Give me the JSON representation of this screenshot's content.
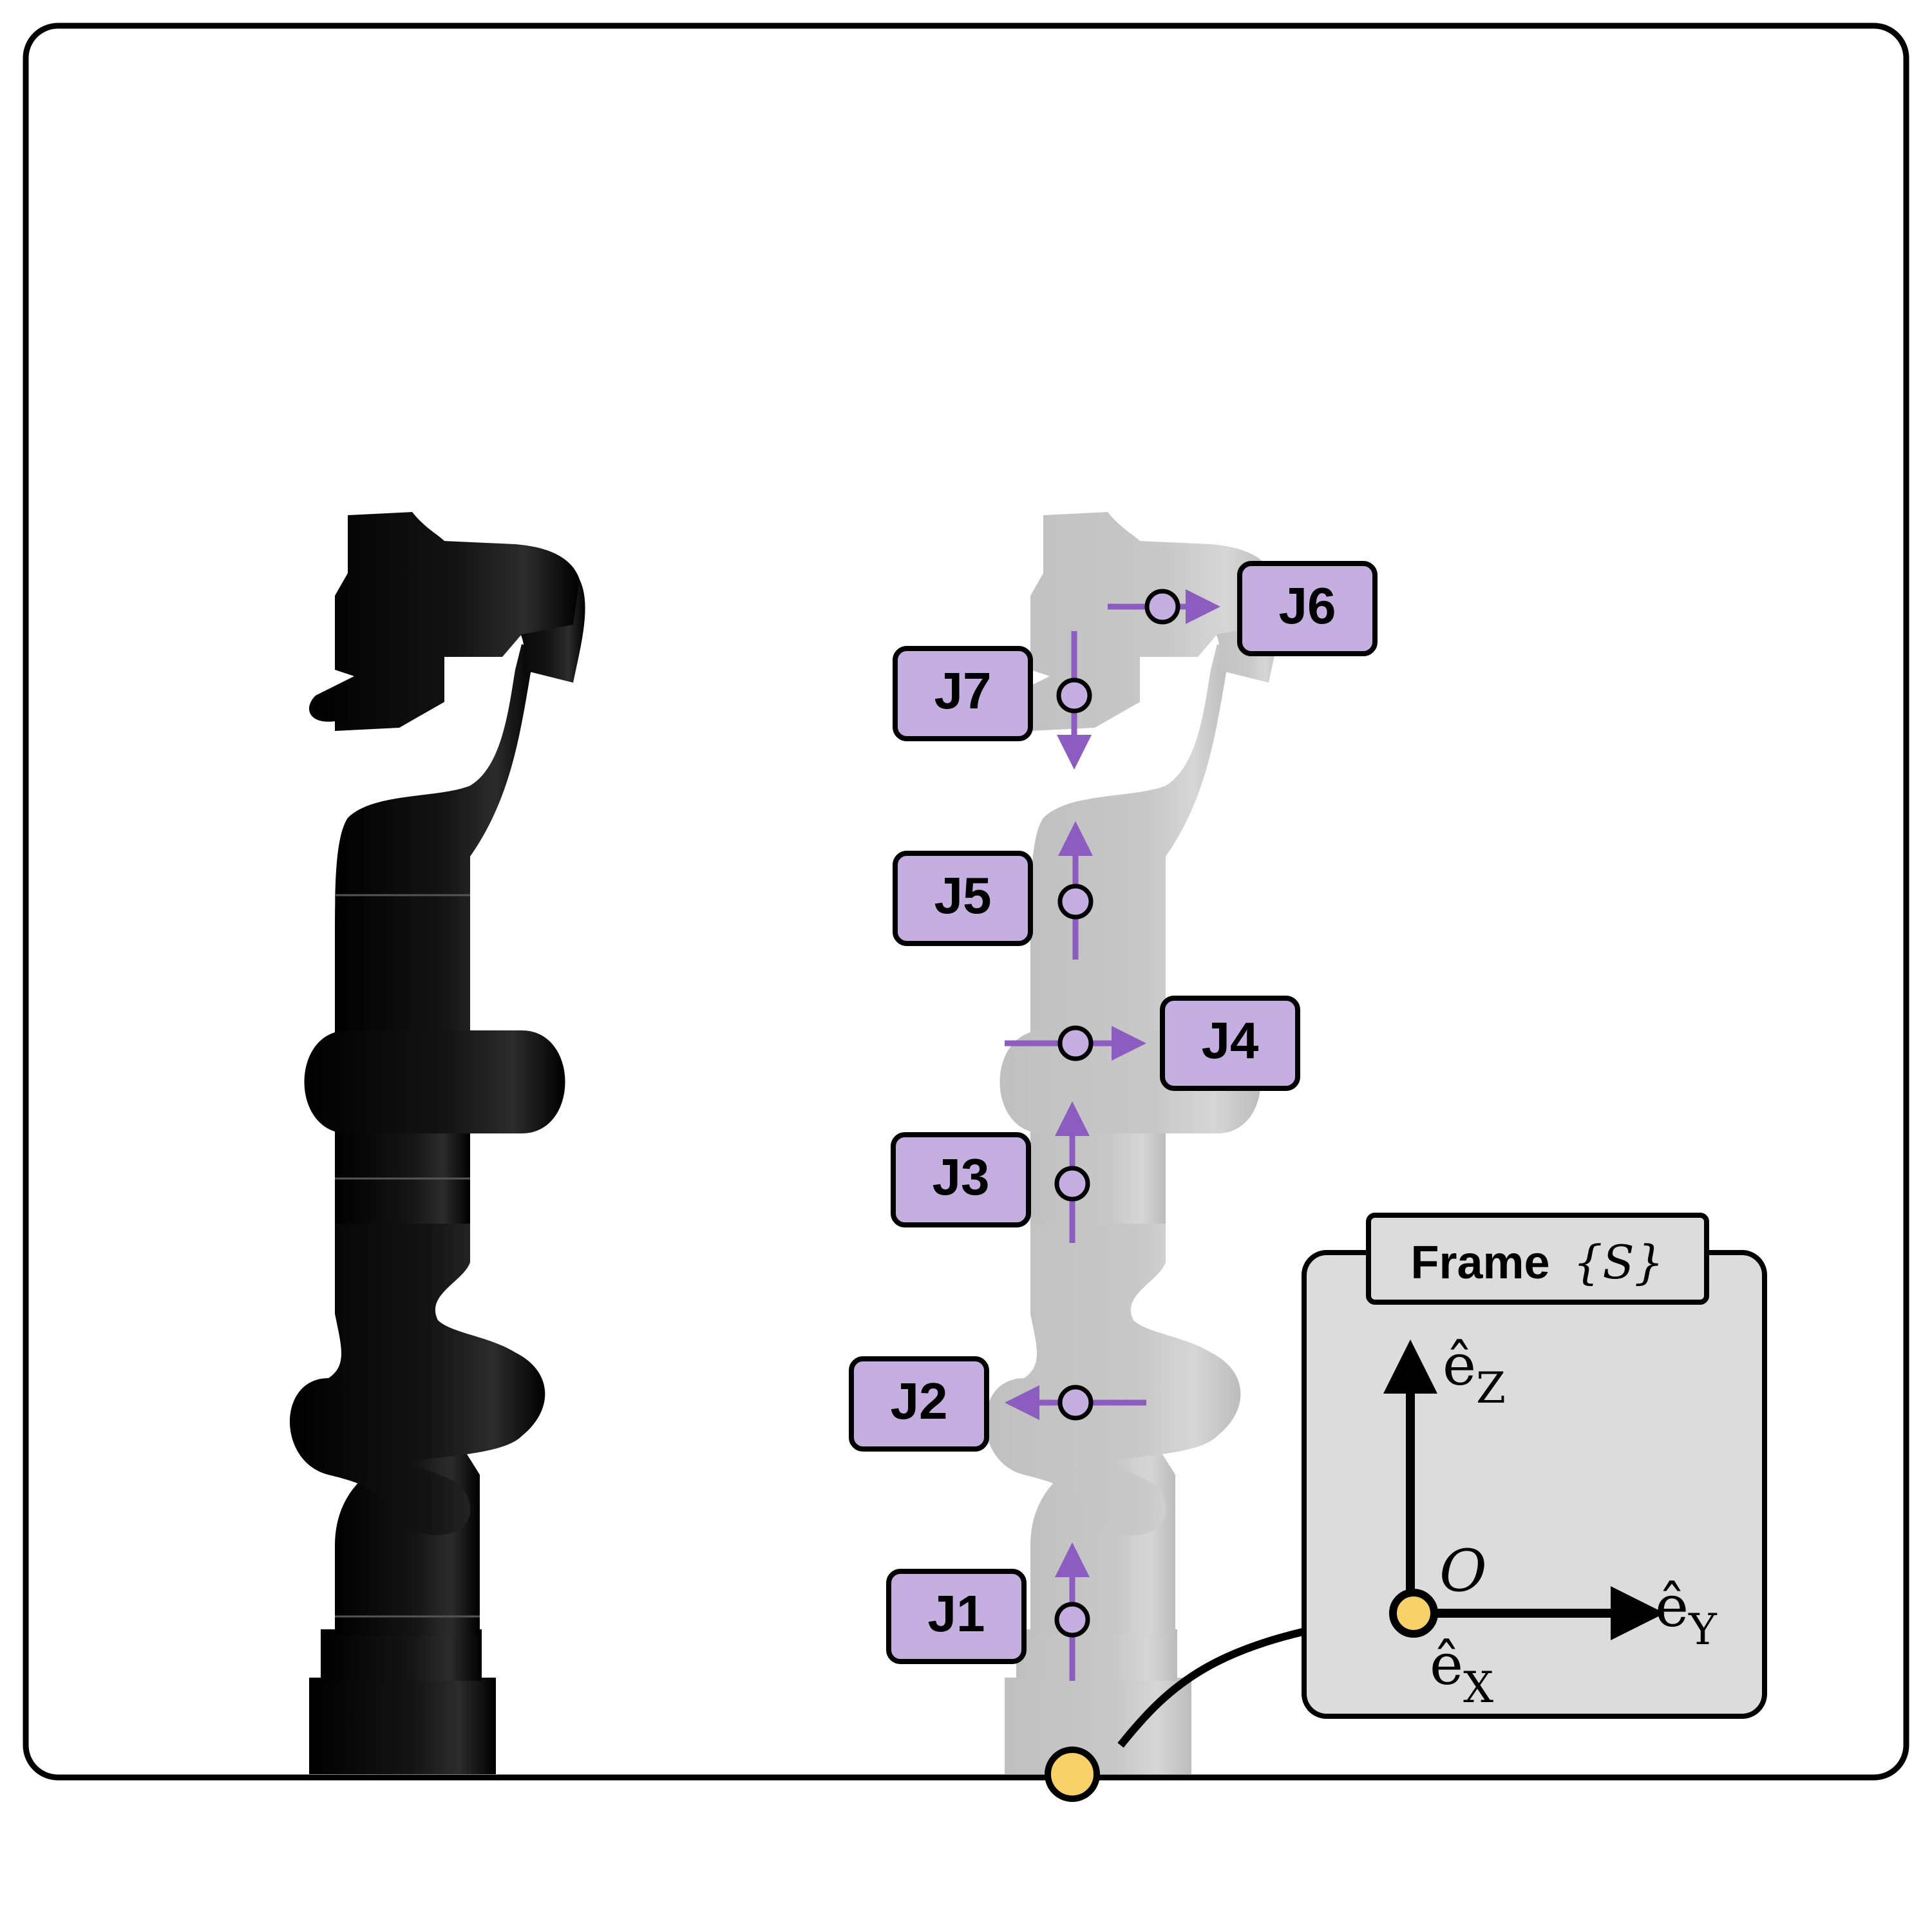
{
  "joints": [
    {
      "id": "j1",
      "label": "J1"
    },
    {
      "id": "j2",
      "label": "J2"
    },
    {
      "id": "j3",
      "label": "J3"
    },
    {
      "id": "j4",
      "label": "J4"
    },
    {
      "id": "j5",
      "label": "J5"
    },
    {
      "id": "j6",
      "label": "J6"
    },
    {
      "id": "j7",
      "label": "J7"
    }
  ],
  "frame_box": {
    "title": "Frame",
    "title_math": "{S}",
    "origin_label": "O",
    "axis_z": "ê",
    "axis_z_sub": "Z",
    "axis_y": "ê",
    "axis_y_sub": "Y",
    "axis_x": "ê",
    "axis_x_sub": "X"
  },
  "colors": {
    "joint_fill": "#c5aee0",
    "arrow": "#8c5cc0",
    "origin_dot": "#f8d268",
    "frame_panel": "#dcdcdc",
    "robot_dark": "#0a0a0a",
    "robot_ghost": "#c4c4c4"
  }
}
